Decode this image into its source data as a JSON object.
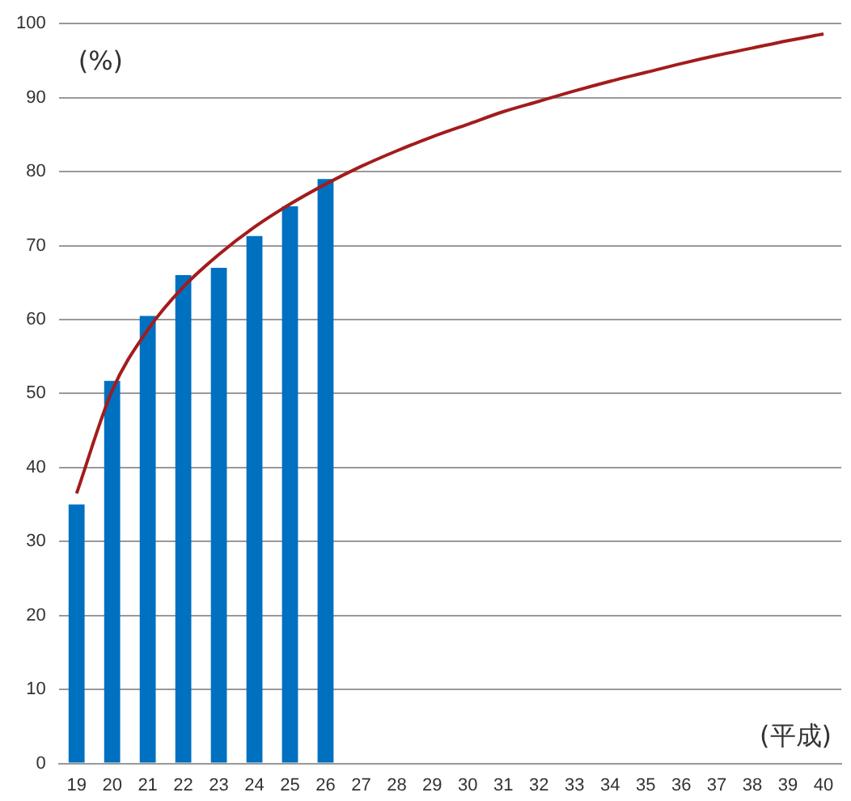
{
  "chart_data": {
    "type": "bar",
    "xlabel": "(平成)",
    "ylabel": "(%)",
    "categories": [
      "19",
      "20",
      "21",
      "22",
      "23",
      "24",
      "25",
      "26",
      "27",
      "28",
      "29",
      "30",
      "31",
      "32",
      "33",
      "34",
      "35",
      "36",
      "37",
      "38",
      "39",
      "40"
    ],
    "series": [
      {
        "color": "#0070c0",
        "values": [
          35,
          51.7,
          60.5,
          66,
          67,
          71.3,
          75.3,
          79,
          null,
          null,
          null,
          null,
          null,
          null,
          null,
          null,
          null,
          null,
          null,
          null,
          null,
          null
        ]
      },
      {
        "type": "line",
        "color": "#a31c1c",
        "marker": "none",
        "line_style": "solid",
        "values": [
          36.5,
          50.4,
          58.6,
          64.4,
          68.8,
          72.5,
          75.6,
          78.3,
          80.7,
          82.8,
          84.7,
          86.4,
          88.1,
          89.5,
          90.9,
          92.2,
          93.4,
          94.6,
          95.7,
          96.7,
          97.7,
          98.6
        ]
      }
    ],
    "ylim": [
      0,
      100
    ],
    "yticks": [
      0,
      10,
      20,
      30,
      40,
      50,
      60,
      70,
      80,
      90,
      100
    ],
    "grid": "y",
    "legend": false
  }
}
